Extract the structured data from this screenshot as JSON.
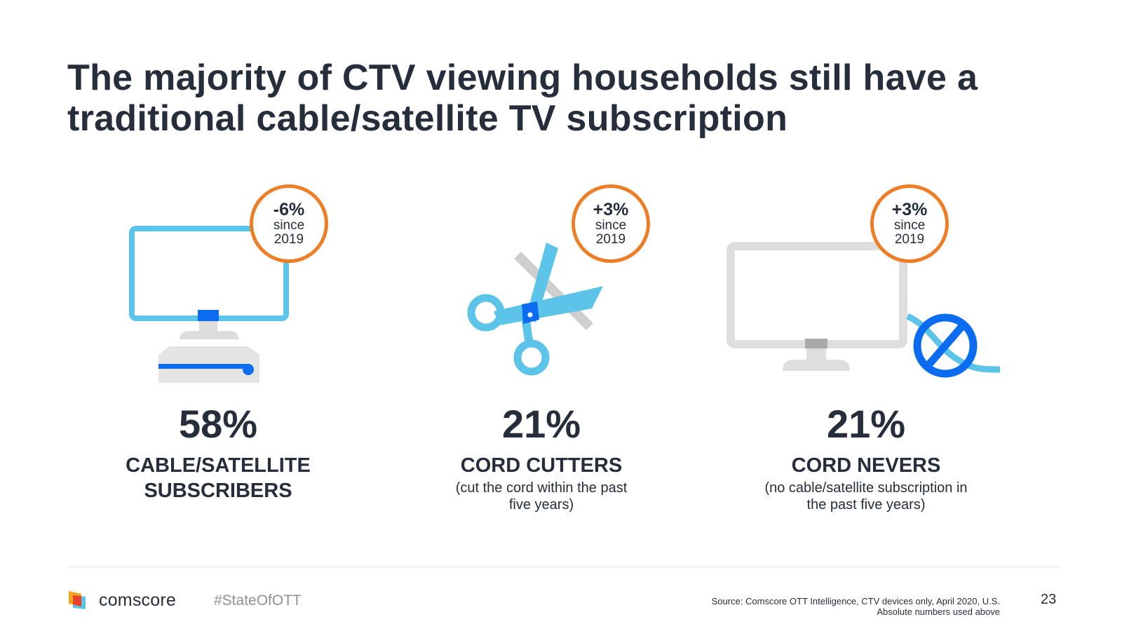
{
  "title": {
    "line1": "The majority of CTV viewing households still have a",
    "line2": "traditional cable/satellite TV subscription"
  },
  "colors": {
    "accent_orange": "#ee7e25",
    "icon_light_blue": "#5bc4e8",
    "icon_dark_blue": "#0b6cf0",
    "icon_gray": "#dcdcdc",
    "text_dark": "#262d3b"
  },
  "panels": [
    {
      "icon": "monitor-with-cable-box-icon",
      "badge": {
        "change": "-6%",
        "since": "since",
        "year": "2019"
      },
      "percent": "58%",
      "label_line1": "CABLE/SATELLITE",
      "label_line2": "SUBSCRIBERS"
    },
    {
      "icon": "scissors-cutting-cord-icon",
      "badge": {
        "change": "+3%",
        "since": "since",
        "year": "2019"
      },
      "percent": "21%",
      "label_line1": "CORD CUTTERS",
      "note_line1": "(cut the cord within the past",
      "note_line2": "five years)"
    },
    {
      "icon": "monitor-no-cable-icon",
      "badge": {
        "change": "+3%",
        "since": "since",
        "year": "2019"
      },
      "percent": "21%",
      "label_line1": "CORD NEVERS",
      "note_line1": "(no cable/satellite subscription in",
      "note_line2": "the past five years)"
    }
  ],
  "footer": {
    "brand": "comscore",
    "hashtag": "#StateOfOTT",
    "source_line1": "Source: Comscore OTT Intelligence, CTV devices only, April 2020, U.S.",
    "source_line2": "Absolute numbers used above",
    "page_number": "23"
  }
}
